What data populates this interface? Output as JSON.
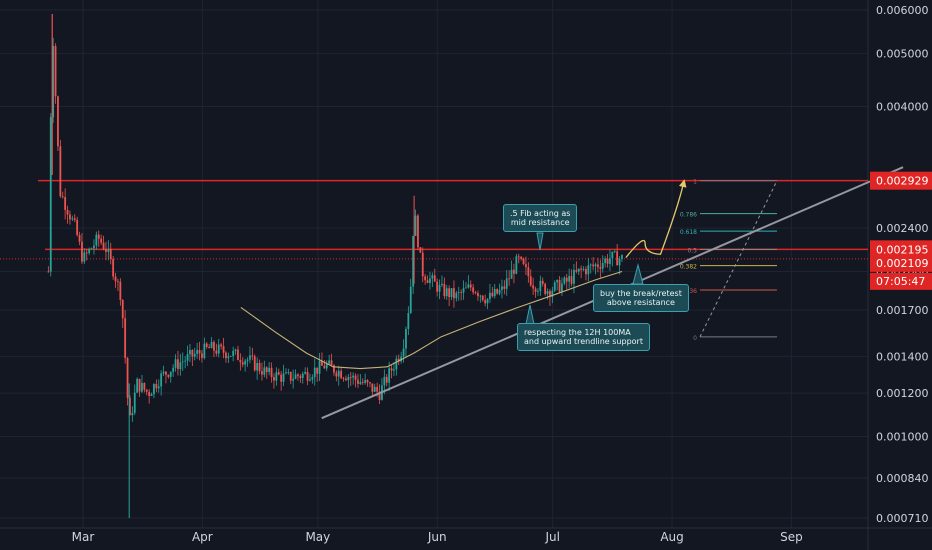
{
  "chart_data": {
    "type": "candlestick",
    "yscale": "log",
    "ylim": [
      0.00071,
      0.006
    ],
    "y_ticks": [
      "0.006000",
      "0.005000",
      "0.004000",
      "0.002400",
      "0.002000",
      "0.001700",
      "0.001400",
      "0.001200",
      "0.001000",
      "0.000840",
      "0.000710"
    ],
    "y_tick_values": [
      0.006,
      0.005,
      0.004,
      0.0024,
      0.002,
      0.0017,
      0.0014,
      0.0012,
      0.001,
      0.00084,
      0.00071
    ],
    "x_ticks": [
      "Mar",
      "Apr",
      "May",
      "Jun",
      "Jul",
      "Aug",
      "Sep"
    ],
    "x_tick_dates": [
      "Mar 1",
      "Apr 1",
      "May 1",
      "Jun 1",
      "Jul 1",
      "Aug 1",
      "Sep 1"
    ],
    "price_labels": {
      "resistance": "0.002929",
      "mid_level": "0.002195",
      "last_price": "0.002109",
      "countdown": "07:05:47"
    },
    "horizontal_levels": [
      0.002929,
      0.002195,
      0.002109
    ],
    "fib_levels": [
      {
        "label": "1",
        "value": 0.002929
      },
      {
        "label": "0.786",
        "value": 0.00255
      },
      {
        "label": "0.618",
        "value": 0.00237
      },
      {
        "label": "0.5",
        "value": 0.002195
      },
      {
        "label": "0.382",
        "value": 0.00205
      },
      {
        "label": "0.236",
        "value": 0.00185
      },
      {
        "label": "0",
        "value": 0.00152
      }
    ],
    "annotations": [
      ".5 Fib acting as\nmid resistance",
      "buy the break/retest\nabove resistance",
      "respecting the 12H 100MA\nand upward trendline support"
    ],
    "series": [
      {
        "kind": "price_path",
        "points": [
          [
            "Feb 21",
            0.002
          ],
          [
            "Feb 22",
            0.0058
          ],
          [
            "Feb 23",
            0.004
          ],
          [
            "Feb 24",
            0.0028
          ],
          [
            "Feb 26",
            0.0026
          ],
          [
            "Feb 28",
            0.0024
          ],
          [
            "Mar 1",
            0.0021
          ],
          [
            "Mar 3",
            0.0022
          ],
          [
            "Mar 5",
            0.0023
          ],
          [
            "Mar 7",
            0.0022
          ],
          [
            "Mar 9",
            0.002
          ],
          [
            "Mar 11",
            0.0018
          ],
          [
            "Mar 13",
            0.00105
          ],
          [
            "Mar 15",
            0.00125
          ],
          [
            "Mar 18",
            0.0012
          ],
          [
            "Mar 21",
            0.00128
          ],
          [
            "Mar 25",
            0.00135
          ],
          [
            "Mar 29",
            0.0014
          ],
          [
            "Apr 3",
            0.00145
          ],
          [
            "Apr 8",
            0.00142
          ],
          [
            "Apr 13",
            0.00138
          ],
          [
            "Apr 18",
            0.0013
          ],
          [
            "Apr 23",
            0.00128
          ],
          [
            "Apr 28",
            0.0013
          ],
          [
            "May 3",
            0.00135
          ],
          [
            "May 8",
            0.0013
          ],
          [
            "May 13",
            0.00125
          ],
          [
            "May 17",
            0.0012
          ],
          [
            "May 20",
            0.00132
          ],
          [
            "May 23",
            0.00145
          ],
          [
            "May 25",
            0.0018
          ],
          [
            "May 26",
            0.0026
          ],
          [
            "May 28",
            0.002
          ],
          [
            "Jun 2",
            0.00185
          ],
          [
            "Jun 6",
            0.0018
          ],
          [
            "Jun 10",
            0.00188
          ],
          [
            "Jun 14",
            0.00178
          ],
          [
            "Jun 18",
            0.00185
          ],
          [
            "Jun 22",
            0.0021
          ],
          [
            "Jun 26",
            0.0019
          ],
          [
            "Jun 30",
            0.00185
          ],
          [
            "Jul 4",
            0.0019
          ],
          [
            "Jul 8",
            0.002
          ],
          [
            "Jul 12",
            0.00205
          ],
          [
            "Jul 16",
            0.00212
          ],
          [
            "Jul 19",
            0.00211
          ]
        ]
      },
      {
        "kind": "moving_average_12H_100",
        "points": [
          [
            "Apr 11",
            0.00172
          ],
          [
            "Apr 20",
            0.00155
          ],
          [
            "Apr 28",
            0.00142
          ],
          [
            "May 5",
            0.00134
          ],
          [
            "May 12",
            0.00133
          ],
          [
            "May 19",
            0.00134
          ],
          [
            "May 26",
            0.00142
          ],
          [
            "Jun 2",
            0.00152
          ],
          [
            "Jun 12",
            0.00162
          ],
          [
            "Jun 22",
            0.00172
          ],
          [
            "Jul 2",
            0.00182
          ],
          [
            "Jul 12",
            0.00193
          ],
          [
            "Jul 19",
            0.002
          ]
        ]
      },
      {
        "kind": "trendline",
        "points": [
          [
            "May 2",
            0.00108
          ],
          [
            "Sep 30",
            0.0031
          ]
        ]
      },
      {
        "kind": "projection",
        "points": [
          [
            "Jul 20",
            0.00212
          ],
          [
            "Jul 25",
            0.00225
          ],
          [
            "Jul 29",
            0.00215
          ],
          [
            "Aug 4",
            0.0029
          ]
        ]
      }
    ]
  }
}
